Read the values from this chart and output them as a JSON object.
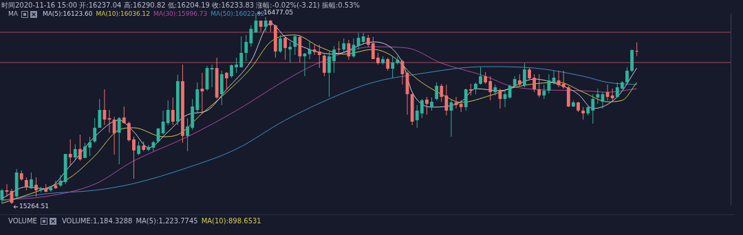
{
  "chart_data": {
    "type": "candlestick",
    "title": "时间2020-11-16 15:00 开:16237.04 高:16290.82 低:16204.19 收:16233.83 涨幅:-0.02%(-3.21) 振幅:0.53%",
    "subtitle": "MA",
    "legend": "top left",
    "tick_labels": false,
    "categories": [
      null,
      null,
      null,
      null,
      null,
      null,
      null,
      null,
      null,
      null,
      null,
      null,
      null,
      null,
      null,
      null,
      null,
      null,
      null,
      null,
      null,
      null,
      null,
      null,
      null,
      null,
      null,
      null,
      null,
      null,
      null,
      null,
      null,
      null,
      null,
      null,
      null,
      null,
      null,
      null,
      null,
      null,
      null,
      null,
      null,
      null,
      null,
      null,
      null,
      null,
      null,
      null,
      null,
      null,
      null,
      null,
      null,
      null,
      null,
      null,
      null,
      null,
      null,
      null,
      null,
      null,
      null,
      null,
      null,
      null,
      null,
      null,
      null,
      null,
      null,
      null,
      null,
      null,
      null,
      null,
      null,
      null,
      null,
      null,
      null,
      null,
      null,
      null,
      null,
      null,
      null,
      null,
      null,
      null,
      null,
      null,
      null,
      null,
      null,
      null,
      null,
      null,
      null,
      null,
      null,
      null,
      null,
      null,
      null,
      null,
      null,
      null,
      null,
      null,
      null,
      null,
      null,
      null,
      null,
      null,
      null,
      null,
      null,
      null,
      null,
      null,
      null,
      null,
      null,
      null,
      null
    ],
    "ref_lines": [
      {
        "axis": "y",
        "value": 16355,
        "color": "#7a3a4c"
      },
      {
        "axis": "y",
        "value": 16163,
        "color": "#7a3a4c"
      }
    ],
    "annotations": [
      "16477.05",
      "15264.51",
      "VOLUME",
      "VOLUME:1,184.3288",
      "MA(5):1,223.7745",
      "MA(10):898.6531"
    ],
    "series": [
      {
        "type": "candlestick",
        "ohlc": [
          [
            15291,
            15361,
            15269,
            15352
          ],
          [
            15352,
            15391,
            15313,
            15343
          ],
          [
            15348,
            15361,
            15264.51,
            15273
          ],
          [
            15313,
            15487,
            15300,
            15465
          ],
          [
            15460,
            15478,
            15413,
            15421
          ],
          [
            15417,
            15434,
            15352,
            15374
          ],
          [
            15365,
            15465,
            15361,
            15421
          ],
          [
            15387,
            15434,
            15313,
            15352
          ],
          [
            15352,
            15374,
            15339,
            15365
          ],
          [
            15365,
            15391,
            15339,
            15343
          ],
          [
            15352,
            15378,
            15343,
            15369
          ],
          [
            15382,
            15413,
            15361,
            15365
          ],
          [
            15382,
            15448,
            15374,
            15413
          ],
          [
            15404,
            15583,
            15391,
            15583
          ],
          [
            15583,
            15675,
            15509,
            15561
          ],
          [
            15561,
            15644,
            15548,
            15614
          ],
          [
            15614,
            15705,
            15539,
            15548
          ],
          [
            15557,
            15653,
            15557,
            15631
          ],
          [
            15623,
            15692,
            15570,
            15657
          ],
          [
            15662,
            15810,
            15653,
            15749
          ],
          [
            15749,
            15932,
            15749,
            15862
          ],
          [
            15862,
            15993,
            15766,
            15801
          ],
          [
            15810,
            15862,
            15718,
            15801
          ],
          [
            15801,
            15818,
            15579,
            15714
          ],
          [
            15718,
            15818,
            15517,
            15810
          ],
          [
            15814,
            15884,
            15775,
            15779
          ],
          [
            15779,
            15788,
            15662,
            15670
          ],
          [
            15675,
            15692,
            15426,
            15605
          ],
          [
            15583,
            15662,
            15574,
            15636
          ],
          [
            15636,
            15662,
            15600,
            15609
          ],
          [
            15609,
            15640,
            15600,
            15627
          ],
          [
            15623,
            15666,
            15600,
            15657
          ],
          [
            15662,
            15749,
            15653,
            15744
          ],
          [
            15714,
            15858,
            15705,
            15788
          ],
          [
            15779,
            15923,
            15766,
            15862
          ],
          [
            15862,
            15941,
            15766,
            15788
          ],
          [
            15788,
            16085,
            15766,
            16045
          ],
          [
            16045,
            16150,
            15653,
            15697
          ],
          [
            15697,
            15810,
            15600,
            15757
          ],
          [
            15749,
            15932,
            15736,
            15884
          ],
          [
            15862,
            16037,
            15840,
            15993
          ],
          [
            15997,
            16098,
            15840,
            15980
          ],
          [
            15993,
            16141,
            15984,
            16128
          ],
          [
            16119,
            16150,
            16006,
            16128
          ],
          [
            16128,
            16194,
            15932,
            15941
          ],
          [
            15962,
            16111,
            15893,
            16089
          ],
          [
            16098,
            16102,
            15993,
            16063
          ],
          [
            16076,
            16150,
            16067,
            16146
          ],
          [
            16133,
            16194,
            16098,
            16150
          ],
          [
            16133,
            16329,
            16133,
            16224
          ],
          [
            16224,
            16338,
            16172,
            16294
          ],
          [
            16285,
            16399,
            16263,
            16377
          ],
          [
            16355,
            16477.05,
            16351,
            16429
          ],
          [
            16429,
            16429,
            16359,
            16390
          ],
          [
            16390,
            16451,
            16359,
            16429
          ],
          [
            16429,
            16433,
            16359,
            16399
          ],
          [
            16399,
            16403,
            16194,
            16233
          ],
          [
            16233,
            16338,
            16224,
            16316
          ],
          [
            16320,
            16329,
            16181,
            16255
          ],
          [
            16246,
            16294,
            16163,
            16263
          ],
          [
            16263,
            16338,
            16211,
            16329
          ],
          [
            16325,
            16338,
            16163,
            16202
          ],
          [
            16202,
            16224,
            16076,
            16220
          ],
          [
            16216,
            16298,
            16185,
            16246
          ],
          [
            16246,
            16276,
            16211,
            16229
          ],
          [
            16233,
            16276,
            16128,
            16211
          ],
          [
            16207,
            16216,
            16076,
            16098
          ],
          [
            16098,
            16233,
            15945,
            16202
          ],
          [
            16172,
            16268,
            16098,
            16246
          ],
          [
            16250,
            16298,
            16216,
            16246
          ],
          [
            16246,
            16316,
            16224,
            16285
          ],
          [
            16285,
            16307,
            16181,
            16202
          ],
          [
            16202,
            16316,
            16194,
            16276
          ],
          [
            16268,
            16351,
            16246,
            16320
          ],
          [
            16294,
            16351,
            16276,
            16329
          ],
          [
            16320,
            16338,
            16263,
            16276
          ],
          [
            16285,
            16325,
            16185,
            16185
          ],
          [
            16194,
            16224,
            16150,
            16159
          ],
          [
            16159,
            16202,
            16150,
            16185
          ],
          [
            16185,
            16194,
            16111,
            16124
          ],
          [
            16124,
            16202,
            16067,
            16163
          ],
          [
            16159,
            16202,
            16150,
            16181
          ],
          [
            16172,
            16181,
            16023,
            16089
          ],
          [
            16098,
            16106,
            15832,
            15962
          ],
          [
            15962,
            15967,
            15766,
            15788
          ],
          [
            15797,
            15893,
            15749,
            15858
          ],
          [
            15840,
            15932,
            15810,
            15923
          ],
          [
            15928,
            15945,
            15832,
            15901
          ],
          [
            15880,
            15941,
            15858,
            15914
          ],
          [
            15932,
            16037,
            15923,
            16015
          ],
          [
            16015,
            16028,
            15914,
            15945
          ],
          [
            15954,
            16023,
            15827,
            15858
          ],
          [
            15858,
            15932,
            15692,
            15910
          ],
          [
            15910,
            15945,
            15871,
            15893
          ],
          [
            15901,
            15923,
            15849,
            15880
          ],
          [
            15880,
            15997,
            15858,
            15993
          ],
          [
            15993,
            16028,
            15954,
            15984
          ],
          [
            15993,
            16037,
            15962,
            16028
          ],
          [
            16028,
            16133,
            16023,
            16076
          ],
          [
            16076,
            16102,
            16028,
            16037
          ],
          [
            16045,
            16076,
            15923,
            15975
          ],
          [
            15975,
            16023,
            15954,
            16006
          ],
          [
            15989,
            15997,
            15871,
            15932
          ],
          [
            15932,
            15993,
            15880,
            15962
          ],
          [
            15941,
            16023,
            15932,
            16015
          ],
          [
            16015,
            16076,
            16006,
            16058
          ],
          [
            16050,
            16089,
            16015,
            16023
          ],
          [
            16019,
            16159,
            16006,
            16119
          ],
          [
            16119,
            16128,
            16058,
            16063
          ],
          [
            16067,
            16089,
            15975,
            15993
          ],
          [
            15993,
            16089,
            15941,
            15954
          ],
          [
            15954,
            16023,
            15932,
            15984
          ],
          [
            15984,
            16089,
            15967,
            16050
          ],
          [
            16037,
            16111,
            16023,
            16067
          ],
          [
            16050,
            16111,
            16006,
            16019
          ],
          [
            16028,
            16111,
            15997,
            16006
          ],
          [
            16006,
            16015,
            15880,
            15884
          ],
          [
            15884,
            15923,
            15880,
            15910
          ],
          [
            15910,
            15914,
            15849,
            15858
          ],
          [
            15858,
            15880,
            15801,
            15840
          ],
          [
            15840,
            15893,
            15827,
            15880
          ],
          [
            15858,
            15962,
            15775,
            15932
          ],
          [
            15941,
            15997,
            15901,
            15962
          ],
          [
            15914,
            15975,
            15871,
            15962
          ],
          [
            15975,
            16023,
            15923,
            15945
          ],
          [
            15954,
            15997,
            15923,
            15936
          ],
          [
            15945,
            16037,
            15941,
            16006
          ],
          [
            15997,
            16045,
            15993,
            16037
          ],
          [
            16037,
            16133,
            16028,
            16111
          ],
          [
            16111,
            16246,
            16102,
            16242
          ],
          [
            16237.04,
            16290.82,
            16204.19,
            16233.83
          ]
        ],
        "colors": [
          "#2fb39c",
          "#f0716d",
          "#f0716d",
          "#2fb39c",
          "#f0716d",
          "#f0716d",
          "#2fb39c",
          "#f0716d",
          "#2fb39c",
          "#f0716d",
          "#2fb39c",
          "#f0716d",
          "#2fb39c",
          "#2fb39c",
          "#f0716d",
          "#2fb39c",
          "#f0716d",
          "#2fb39c",
          "#2fb39c",
          "#2fb39c",
          "#2fb39c",
          "#f0716d",
          "#f0716d",
          "#f0716d",
          "#2fb39c",
          "#f0716d",
          "#f0716d",
          "#f0716d",
          "#2fb39c",
          "#f0716d",
          "#2fb39c",
          "#2fb39c",
          "#2fb39c",
          "#2fb39c",
          "#2fb39c",
          "#f0716d",
          "#2fb39c",
          "#f0716d",
          "#2fb39c",
          "#2fb39c",
          "#2fb39c",
          "#f0716d",
          "#2fb39c",
          "#2fb39c",
          "#f0716d",
          "#2fb39c",
          "#f0716d",
          "#2fb39c",
          "#2fb39c",
          "#2fb39c",
          "#2fb39c",
          "#2fb39c",
          "#2fb39c",
          "#f0716d",
          "#2fb39c",
          "#f0716d",
          "#f0716d",
          "#2fb39c",
          "#f0716d",
          "#2fb39c",
          "#2fb39c",
          "#f0716d",
          "#2fb39c",
          "#2fb39c",
          "#f0716d",
          "#f0716d",
          "#f0716d",
          "#2fb39c",
          "#2fb39c",
          "#f0716d",
          "#2fb39c",
          "#f0716d",
          "#2fb39c",
          "#2fb39c",
          "#2fb39c",
          "#f0716d",
          "#f0716d",
          "#f0716d",
          "#2fb39c",
          "#f0716d",
          "#2fb39c",
          "#2fb39c",
          "#f0716d",
          "#f0716d",
          "#f0716d",
          "#2fb39c",
          "#2fb39c",
          "#f0716d",
          "#2fb39c",
          "#2fb39c",
          "#f0716d",
          "#f0716d",
          "#2fb39c",
          "#f0716d",
          "#f0716d",
          "#2fb39c",
          "#f0716d",
          "#2fb39c",
          "#2fb39c",
          "#f0716d",
          "#f0716d",
          "#2fb39c",
          "#f0716d",
          "#2fb39c",
          "#2fb39c",
          "#2fb39c",
          "#f0716d",
          "#2fb39c",
          "#f0716d",
          "#f0716d",
          "#f0716d",
          "#2fb39c",
          "#2fb39c",
          "#2fb39c",
          "#f0716d",
          "#f0716d",
          "#f0716d",
          "#2fb39c",
          "#f0716d",
          "#f0716d",
          "#2fb39c",
          "#2fb39c",
          "#2fb39c",
          "#2fb39c",
          "#f0716d",
          "#f0716d",
          "#2fb39c",
          "#2fb39c",
          "#2fb39c",
          "#2fb39c",
          "#f0716d"
        ]
      },
      {
        "type": "line",
        "name": "MA(5):16123.60",
        "color": "#c9d3e6",
        "values": [
          15300,
          null,
          null,
          null,
          null,
          15374,
          null,
          null,
          null,
          15361,
          null,
          null,
          null,
          null,
          15509,
          null,
          null,
          null,
          null,
          15692,
          null,
          null,
          null,
          null,
          15797,
          null,
          null,
          15723,
          null,
          null,
          15623,
          null,
          null,
          null,
          15723,
          null,
          null,
          null,
          15832,
          null,
          null,
          null,
          15858,
          null,
          null,
          null,
          15993,
          null,
          null,
          null,
          null,
          16172,
          null,
          null,
          null,
          16412,
          null,
          null,
          16325,
          null,
          null,
          null,
          null,
          16246,
          null,
          null,
          null,
          null,
          16216,
          null,
          null,
          null,
          null,
          null,
          null,
          null,
          16294,
          null,
          null,
          null,
          null,
          null,
          16163,
          null,
          15975,
          null,
          null,
          null,
          15880,
          null,
          null,
          null,
          null,
          null,
          15914,
          null,
          null,
          15997,
          null,
          null,
          null,
          null,
          15984,
          null,
          null,
          null,
          null,
          null,
          null,
          16058,
          null,
          null,
          null,
          null,
          16023,
          null,
          null,
          null,
          15962,
          null,
          null,
          15871,
          null,
          null,
          null,
          null,
          15945,
          null,
          null,
          null,
          16128
        ]
      },
      {
        "type": "line",
        "name": "MA(10):16036.12",
        "color": "#d6cb4a",
        "values": [
          15269,
          null,
          null,
          null,
          null,
          15321,
          null,
          null,
          null,
          15365,
          null,
          null,
          null,
          null,
          15434,
          null,
          null,
          null,
          null,
          15570,
          null,
          null,
          null,
          null,
          15736,
          null,
          null,
          15749,
          null,
          null,
          null,
          null,
          null,
          15692,
          null,
          null,
          15705,
          null,
          null,
          null,
          null,
          15840,
          null,
          null,
          null,
          null,
          15975,
          null,
          null,
          null,
          null,
          16128,
          null,
          null,
          null,
          16294,
          null,
          null,
          null,
          null,
          16338,
          null,
          null,
          null,
          null,
          16263,
          null,
          null,
          null,
          null,
          16216,
          null,
          null,
          null,
          null,
          null,
          16246,
          null,
          null,
          null,
          16202,
          null,
          null,
          null,
          null,
          16058,
          null,
          null,
          null,
          null,
          15962,
          null,
          null,
          null,
          15910,
          null,
          null,
          null,
          null,
          null,
          15954,
          null,
          null,
          null,
          null,
          16006,
          null,
          null,
          null,
          null,
          null,
          null,
          null,
          null,
          16037,
          null,
          null,
          null,
          null,
          15975,
          null,
          null,
          null,
          null,
          15914,
          null,
          null,
          15923,
          null,
          null,
          16037
        ]
      },
      {
        "type": "line",
        "name": "MA(30):15996.73",
        "color": "#b04aa0",
        "values": [
          15291,
          null,
          null,
          null,
          null,
          null,
          null,
          null,
          null,
          15313,
          null,
          null,
          null,
          null,
          null,
          null,
          null,
          null,
          null,
          15391,
          null,
          null,
          null,
          null,
          null,
          null,
          null,
          15539,
          null,
          null,
          null,
          null,
          null,
          null,
          null,
          null,
          null,
          null,
          15692,
          null,
          null,
          null,
          null,
          null,
          null,
          null,
          null,
          null,
          15858,
          null,
          null,
          null,
          null,
          null,
          null,
          null,
          null,
          null,
          16050,
          null,
          null,
          null,
          null,
          null,
          null,
          16163,
          null,
          null,
          null,
          null,
          null,
          null,
          null,
          null,
          null,
          null,
          16263,
          null,
          null,
          null,
          null,
          null,
          null,
          16255,
          null,
          null,
          null,
          null,
          null,
          null,
          16159,
          null,
          null,
          null,
          null,
          null,
          null,
          null,
          null,
          16076,
          null,
          null,
          null,
          null,
          16015,
          null,
          null,
          null,
          null,
          15993,
          null,
          null,
          null,
          null,
          null,
          null,
          null,
          null,
          null,
          15984,
          null,
          null,
          null,
          null,
          15975,
          null,
          null,
          null,
          null,
          null,
          15997
        ]
      },
      {
        "type": "line",
        "name": "MA(50):16022.62",
        "color": "#3f8fc4",
        "values": [
          15286,
          null,
          null,
          null,
          null,
          null,
          null,
          null,
          null,
          15330,
          null,
          null,
          null,
          null,
          null,
          null,
          null,
          null,
          null,
          15352,
          null,
          null,
          null,
          null,
          null,
          null,
          null,
          15395,
          null,
          null,
          null,
          null,
          null,
          null,
          null,
          null,
          null,
          null,
          15496,
          null,
          null,
          null,
          null,
          null,
          null,
          null,
          null,
          null,
          15614,
          null,
          null,
          null,
          null,
          null,
          null,
          null,
          null,
          null,
          15797,
          null,
          null,
          null,
          null,
          null,
          null,
          null,
          null,
          null,
          15945,
          null,
          null,
          null,
          null,
          null,
          null,
          null,
          16037,
          null,
          null,
          null,
          null,
          null,
          null,
          null,
          null,
          16089,
          null,
          null,
          null,
          null,
          null,
          null,
          null,
          null,
          null,
          null,
          null,
          null,
          null,
          16137,
          null,
          null,
          null,
          null,
          null,
          null,
          null,
          null,
          null,
          16128,
          null,
          null,
          null,
          null,
          null,
          null,
          null,
          null,
          null,
          16076,
          null,
          null,
          null,
          null,
          16037,
          null,
          null,
          null,
          null,
          null,
          16023
        ]
      }
    ]
  }
}
